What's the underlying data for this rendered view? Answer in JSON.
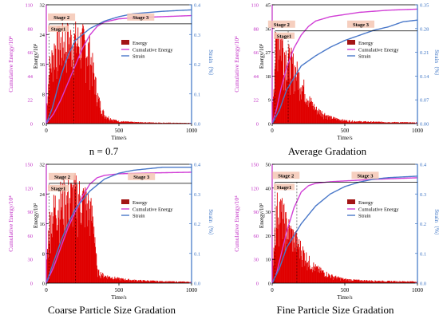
{
  "colors": {
    "energy": "#e00000",
    "energy_legend": "#a31515",
    "cumulative": "#d13fd6",
    "strain": "#4a78c9",
    "axis_left": "#c02cc4",
    "axis_right": "#3b73c4",
    "stage_box": "#f4c7b4",
    "guide": "#000000"
  },
  "captions": [
    "n = 0.7",
    "Average Gradation",
    "Coarse Particle Size Gradation",
    "Fine Particle Size Gradation"
  ],
  "chart_data": [
    {
      "type": "bar",
      "caption": "n = 0.7",
      "xlabel": "Time/s",
      "ylabel_energy": "Energy/10³",
      "ylabel_cumulative": "Cumulative Energy/10⁴",
      "ylabel_strain": "Strain（%）",
      "xlim": [
        0,
        1000
      ],
      "xticks": [
        "0",
        "500",
        "1000"
      ],
      "energy_ylim": [
        0,
        32
      ],
      "energy_ticks": [
        "0",
        "8",
        "16",
        "24",
        "32"
      ],
      "cum_ylim": [
        0,
        110
      ],
      "cum_ticks": [
        "0",
        "22",
        "44",
        "66",
        "88",
        "110"
      ],
      "strain_ylim": [
        0,
        0.4
      ],
      "strain_ticks": [
        "0.0",
        "0.1",
        "0.2",
        "0.3",
        "0.4"
      ],
      "legend": [
        "Energy",
        "Cumulative Energy",
        "Strain"
      ],
      "stages": [
        "Stage1",
        "Stage 2",
        "Stage 3"
      ],
      "energy_envelope": {
        "x": [
          0,
          20,
          60,
          100,
          150,
          200,
          260,
          300,
          330,
          360,
          400,
          450,
          500,
          600,
          700,
          800,
          1000
        ],
        "y": [
          3,
          18,
          26,
          27,
          28,
          28,
          27,
          24,
          16,
          8,
          3,
          1.5,
          0.8,
          0.5,
          0.4,
          0.3,
          0.2
        ]
      },
      "cumulative": {
        "x": [
          0,
          50,
          100,
          150,
          200,
          250,
          300,
          350,
          400,
          500,
          600,
          800,
          1000
        ],
        "y": [
          0,
          9,
          22,
          38,
          54,
          70,
          82,
          90,
          94,
          97,
          98,
          99,
          100
        ]
      },
      "strain": {
        "x": [
          0,
          40,
          100,
          150,
          200,
          300,
          400,
          500,
          600,
          800,
          1000
        ],
        "y": [
          0,
          0.05,
          0.16,
          0.23,
          0.28,
          0.32,
          0.345,
          0.36,
          0.37,
          0.378,
          0.383
        ]
      },
      "stage_markers": [
        20,
        190,
        1000
      ],
      "stage_guide_y": 0.84
    },
    {
      "type": "bar",
      "caption": "Average Gradation",
      "xlabel": "Time/s",
      "ylabel_energy": "Energy/10³",
      "ylabel_cumulative": "Cumulative Energy/10⁴",
      "ylabel_strain": "Strain（%）",
      "xlim": [
        0,
        1000
      ],
      "xticks": [
        "0",
        "500",
        "1000"
      ],
      "energy_ylim": [
        0,
        45
      ],
      "energy_ticks": [
        "0",
        "9",
        "18",
        "27",
        "36",
        "45"
      ],
      "cum_ylim": [
        0,
        110
      ],
      "cum_ticks": [
        "0",
        "22",
        "44",
        "66",
        "88",
        "110"
      ],
      "strain_ylim": [
        0,
        0.35
      ],
      "strain_ticks": [
        "0.00",
        "0.07",
        "0.14",
        "0.21",
        "0.28",
        "0.35"
      ],
      "legend": [
        "Energy",
        "Cumulative Energy",
        "Strain"
      ],
      "stages": [
        "Stage1",
        "Stage 2",
        "Stage 3"
      ],
      "energy_envelope": {
        "x": [
          0,
          20,
          40,
          60,
          80,
          100,
          150,
          200,
          250,
          300,
          400,
          500,
          600,
          800,
          1000
        ],
        "y": [
          5,
          32,
          44,
          40,
          36,
          32,
          27,
          20,
          12,
          7,
          3,
          1.5,
          1,
          0.7,
          0.5
        ]
      },
      "cumulative": {
        "x": [
          0,
          30,
          60,
          100,
          150,
          200,
          250,
          300,
          400,
          500,
          600,
          700,
          800,
          1000
        ],
        "y": [
          0,
          13,
          32,
          52,
          70,
          82,
          90,
          95,
          99,
          101,
          103,
          104,
          105,
          106
        ]
      },
      "strain": {
        "x": [
          0,
          50,
          100,
          200,
          300,
          400,
          500,
          600,
          700,
          800,
          900,
          1000
        ],
        "y": [
          0,
          0.04,
          0.1,
          0.17,
          0.2,
          0.225,
          0.245,
          0.26,
          0.275,
          0.285,
          0.3,
          0.305
        ]
      },
      "stage_markers": [
        20,
        110,
        1000
      ],
      "stage_guide_y": 0.78
    },
    {
      "type": "bar",
      "caption": "Coarse Particle Size Gradation",
      "xlabel": "Time/s",
      "ylabel_energy": "Energy/10³",
      "ylabel_cumulative": "Cumulative Energy/10⁴",
      "ylabel_strain": "Strain（%）",
      "xlim": [
        0,
        1000
      ],
      "xticks": [
        "0",
        "500",
        "1000"
      ],
      "energy_ylim": [
        0,
        32
      ],
      "energy_ticks": [
        "0",
        "8",
        "16",
        "24",
        "32"
      ],
      "cum_ylim": [
        0,
        150
      ],
      "cum_ticks": [
        "0",
        "30",
        "60",
        "90",
        "120",
        "150"
      ],
      "strain_ylim": [
        0,
        0.4
      ],
      "strain_ticks": [
        "0.0",
        "0.1",
        "0.2",
        "0.3",
        "0.4"
      ],
      "legend": [
        "Energy",
        "Cumulative Energy",
        "Strain"
      ],
      "stages": [
        "Stage1",
        "Stage 2",
        "Stage 3"
      ],
      "energy_envelope": {
        "x": [
          0,
          20,
          60,
          100,
          150,
          200,
          260,
          300,
          330,
          350,
          400,
          500,
          600,
          800,
          1000
        ],
        "y": [
          4,
          20,
          26,
          28,
          29,
          30,
          28,
          25,
          20,
          4,
          2.5,
          1.5,
          1,
          0.6,
          0.4
        ]
      },
      "cumulative": {
        "x": [
          0,
          50,
          100,
          150,
          200,
          250,
          300,
          350,
          400,
          500,
          700,
          1000
        ],
        "y": [
          0,
          20,
          45,
          70,
          90,
          110,
          125,
          133,
          136,
          138,
          139,
          140
        ]
      },
      "strain": {
        "x": [
          0,
          50,
          100,
          150,
          200,
          300,
          400,
          500,
          600,
          700,
          800,
          1000
        ],
        "y": [
          0,
          0.07,
          0.14,
          0.2,
          0.25,
          0.31,
          0.35,
          0.37,
          0.38,
          0.385,
          0.39,
          0.39
        ]
      },
      "stage_markers": [
        20,
        200,
        1000
      ],
      "stage_guide_y": 0.84
    },
    {
      "type": "bar",
      "caption": "Fine Particle Size Gradation",
      "xlabel": "Time/s",
      "ylabel_energy": "Energy/10³",
      "ylabel_cumulative": "Cumulative Energy/10⁴",
      "ylabel_strain": "Strain（%）",
      "xlim": [
        0,
        1000
      ],
      "xticks": [
        "0",
        "500",
        "1000"
      ],
      "energy_ylim": [
        0,
        50
      ],
      "energy_ticks": [
        "0",
        "10",
        "20",
        "30",
        "40",
        "50"
      ],
      "cum_ylim": [
        0,
        150
      ],
      "cum_ticks": [
        "0",
        "30",
        "60",
        "90",
        "120",
        "150"
      ],
      "strain_ylim": [
        0,
        0.4
      ],
      "strain_ticks": [
        "0.0",
        "0.1",
        "0.2",
        "0.3",
        "0.4"
      ],
      "legend": [
        "Energy",
        "Cumulative Energy",
        "Strain"
      ],
      "stages": [
        "Stage1",
        "Stage 2",
        "Stage 3"
      ],
      "energy_envelope": {
        "x": [
          0,
          20,
          40,
          60,
          80,
          100,
          150,
          200,
          250,
          300,
          400,
          500,
          600,
          800,
          1000
        ],
        "y": [
          5,
          30,
          42,
          38,
          34,
          30,
          24,
          18,
          12,
          8,
          4,
          2,
          1.5,
          1,
          0.8
        ]
      },
      "cumulative": {
        "x": [
          0,
          30,
          60,
          100,
          150,
          200,
          250,
          300,
          400,
          500,
          700,
          1000
        ],
        "y": [
          0,
          12,
          35,
          65,
          95,
          115,
          123,
          126,
          128,
          129,
          131,
          133
        ]
      },
      "strain": {
        "x": [
          0,
          50,
          100,
          200,
          300,
          400,
          500,
          600,
          700,
          800,
          1000
        ],
        "y": [
          0,
          0.05,
          0.12,
          0.2,
          0.26,
          0.3,
          0.325,
          0.34,
          0.35,
          0.355,
          0.36
        ]
      },
      "stage_markers": [
        20,
        170,
        1000
      ],
      "stage_guide_y": 0.85
    }
  ]
}
